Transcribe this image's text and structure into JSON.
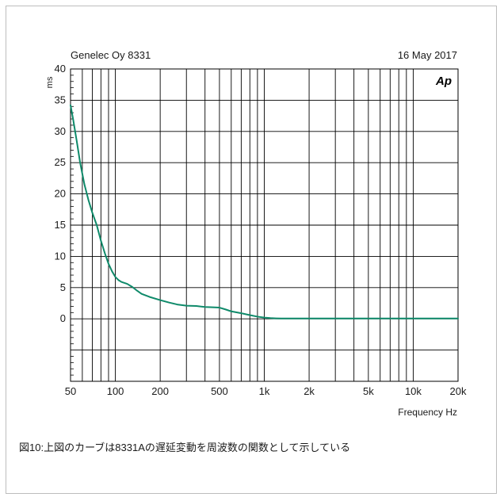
{
  "chart_data": {
    "type": "line",
    "title_left": "Genelec Oy 8331",
    "title_right": "16 May 2017",
    "logo_text": "Ap",
    "xlabel": "Frequency Hz",
    "ylabel": "ms",
    "xscale": "log",
    "xlim": [
      50,
      20000
    ],
    "ylim": [
      -10,
      40
    ],
    "grid": true,
    "x_ticks": [
      {
        "value": 50,
        "label": "50"
      },
      {
        "value": 100,
        "label": "100"
      },
      {
        "value": 200,
        "label": "200"
      },
      {
        "value": 500,
        "label": "500"
      },
      {
        "value": 1000,
        "label": "1k"
      },
      {
        "value": 2000,
        "label": "2k"
      },
      {
        "value": 5000,
        "label": "5k"
      },
      {
        "value": 10000,
        "label": "10k"
      },
      {
        "value": 20000,
        "label": "20k"
      }
    ],
    "y_ticks": [
      {
        "value": 40,
        "label": "40"
      },
      {
        "value": 35,
        "label": "35"
      },
      {
        "value": 30,
        "label": "30"
      },
      {
        "value": 25,
        "label": "25"
      },
      {
        "value": 20,
        "label": "20"
      },
      {
        "value": 15,
        "label": "15"
      },
      {
        "value": 10,
        "label": "10"
      },
      {
        "value": 5,
        "label": "5"
      },
      {
        "value": 0,
        "label": "0"
      }
    ],
    "series": [
      {
        "color": "#0f8a6a",
        "x": [
          50,
          52,
          55,
          58,
          62,
          66,
          70,
          75,
          80,
          85,
          90,
          95,
          100,
          105,
          110,
          120,
          130,
          140,
          150,
          170,
          200,
          230,
          260,
          300,
          350,
          400,
          450,
          500,
          550,
          600,
          700,
          800,
          900,
          1000,
          1100,
          1200,
          1300,
          1500,
          2000,
          3000,
          5000,
          10000,
          20000
        ],
        "y": [
          34.2,
          32,
          28.5,
          25,
          21.5,
          19,
          17,
          15,
          12.5,
          10.5,
          8.8,
          7.6,
          6.7,
          6.2,
          5.9,
          5.6,
          5.1,
          4.5,
          4.0,
          3.5,
          3.0,
          2.6,
          2.3,
          2.1,
          2.05,
          1.9,
          1.85,
          1.8,
          1.5,
          1.2,
          0.9,
          0.6,
          0.35,
          0.2,
          0.12,
          0.08,
          0.05,
          0.05,
          0.05,
          0.05,
          0.05,
          0.05,
          0.05
        ]
      }
    ]
  },
  "caption": "図10:上図のカーブは8331Aの遅延変動を周波数の関数として示している"
}
